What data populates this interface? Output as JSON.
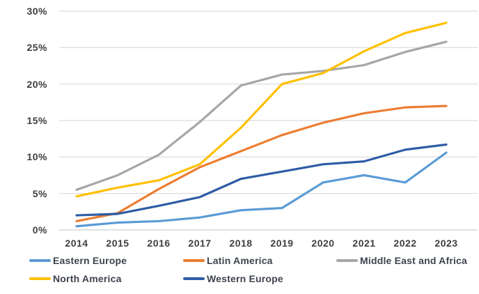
{
  "chart_data": {
    "type": "line",
    "title": "",
    "xlabel": "",
    "ylabel": "",
    "categories": [
      "2014",
      "2015",
      "2016",
      "2017",
      "2018",
      "2019",
      "2020",
      "2021",
      "2022",
      "2023"
    ],
    "y_ticks": [
      "30%",
      "25%",
      "20%",
      "15%",
      "10%",
      "5%",
      "0%"
    ],
    "y_tick_values": [
      30,
      25,
      20,
      15,
      10,
      5,
      0
    ],
    "ylim": [
      0,
      30
    ],
    "grid": true,
    "gridline_color": "#d9d9d9",
    "legend_position": "bottom",
    "series": [
      {
        "name": "Eastern Europe",
        "color": "#5B9BD5",
        "values": [
          0.5,
          1.0,
          1.2,
          1.7,
          2.7,
          3.0,
          6.5,
          7.5,
          6.5,
          10.6
        ]
      },
      {
        "name": "Latin America",
        "color": "#ED7D31",
        "values": [
          1.2,
          2.3,
          5.6,
          8.6,
          10.8,
          13.0,
          14.7,
          16.0,
          16.8,
          17.0
        ]
      },
      {
        "name": "Middle East and Africa",
        "color": "#A6A6A6",
        "values": [
          5.5,
          7.5,
          10.3,
          14.8,
          19.8,
          21.3,
          21.8,
          22.6,
          24.4,
          25.8
        ]
      },
      {
        "name": "North America",
        "color": "#FFC000",
        "values": [
          4.6,
          5.8,
          6.8,
          9.0,
          14.0,
          20.0,
          21.5,
          24.5,
          27.0,
          28.4
        ]
      },
      {
        "name": "Western Europe",
        "color": "#2E5CA6",
        "values": [
          2.0,
          2.2,
          3.3,
          4.5,
          7.0,
          8.0,
          9.0,
          9.4,
          11.0,
          11.7
        ]
      }
    ],
    "legend": {
      "items": [
        "Eastern Europe",
        "Latin America",
        "Middle East and Africa",
        "North America",
        "Western Europe"
      ]
    }
  }
}
